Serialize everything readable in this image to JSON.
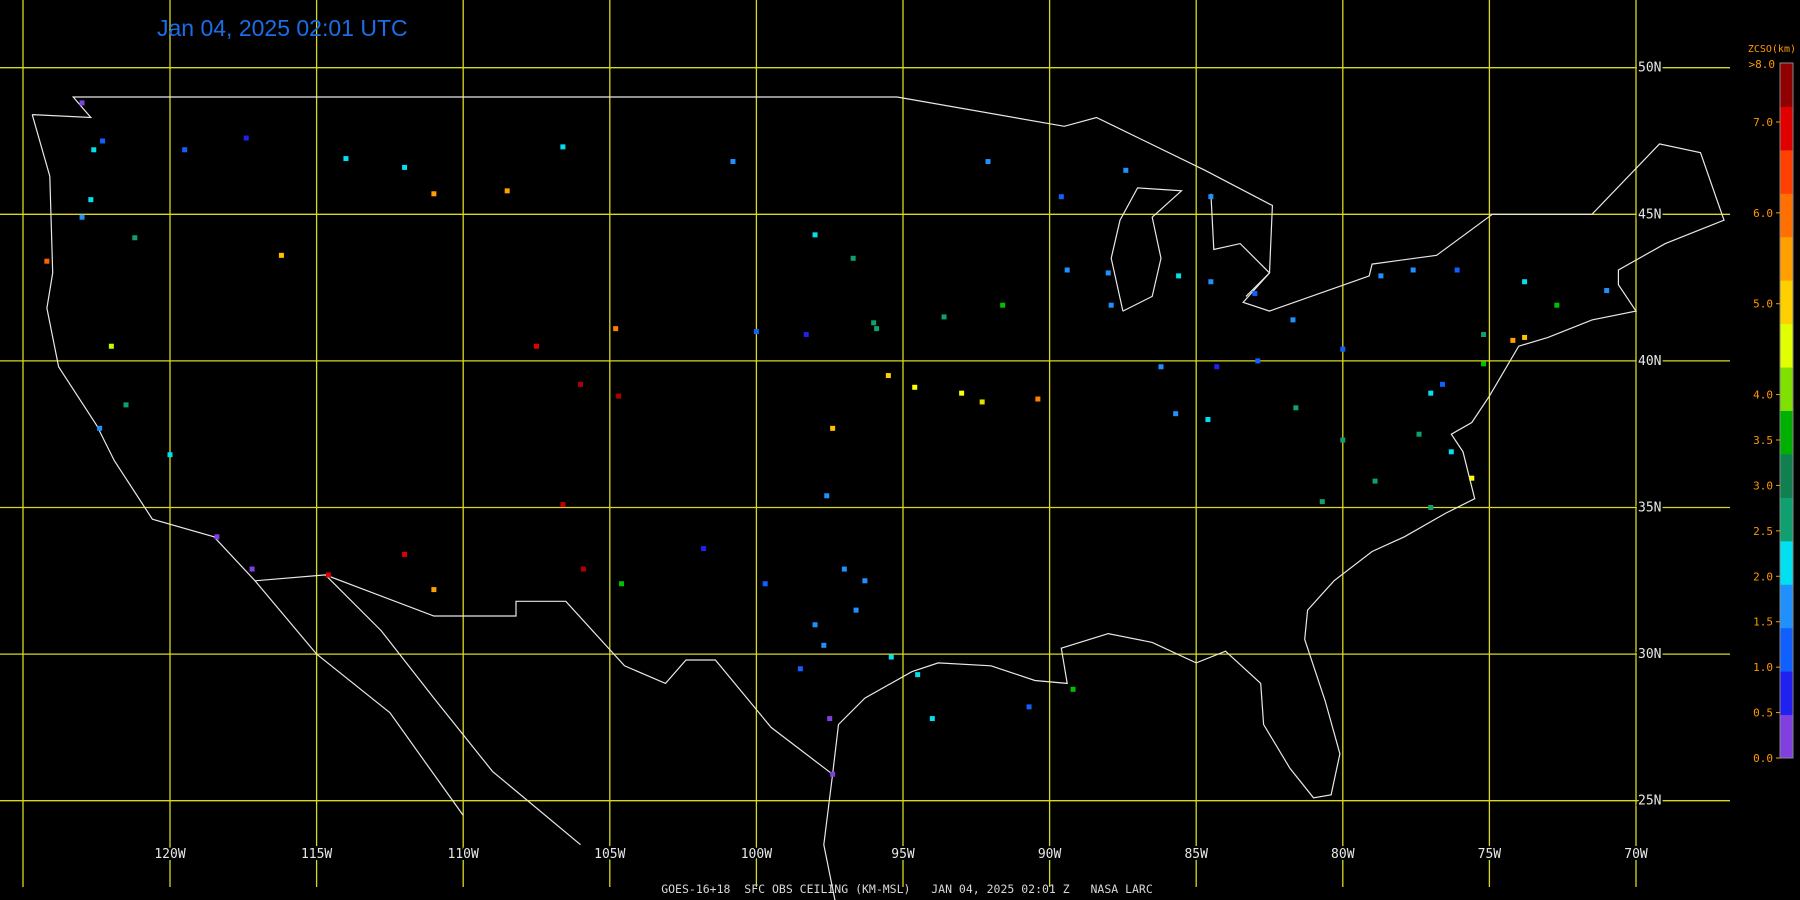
{
  "title": "Jan 04, 2025 02:01 UTC",
  "footer": "GOES-16+18  SFC OBS CEILING (KM-MSL)   JAN 04, 2025 02:01 Z   NASA LARC",
  "grid": {
    "lat": [
      {
        "value": 50,
        "label": "50N"
      },
      {
        "value": 45,
        "label": "45N"
      },
      {
        "value": 40,
        "label": "40N"
      },
      {
        "value": 35,
        "label": "35N"
      },
      {
        "value": 30,
        "label": "30N"
      },
      {
        "value": 25,
        "label": "25N"
      }
    ],
    "lon": [
      {
        "value": -120,
        "label": "120W"
      },
      {
        "value": -115,
        "label": "115W"
      },
      {
        "value": -110,
        "label": "110W"
      },
      {
        "value": -105,
        "label": "105W"
      },
      {
        "value": -100,
        "label": "100W"
      },
      {
        "value": -95,
        "label": "95W"
      },
      {
        "value": -90,
        "label": "90W"
      },
      {
        "value": -85,
        "label": "85W"
      },
      {
        "value": -80,
        "label": "80W"
      },
      {
        "value": -75,
        "label": "75W"
      },
      {
        "value": -70,
        "label": "70W"
      }
    ]
  },
  "legend": {
    "title": "ZCSO(km)",
    "top_label": ">8.0",
    "ticks": [
      {
        "value": 0,
        "label": "0.0"
      },
      {
        "value": 0.5,
        "label": "0.5"
      },
      {
        "value": 1,
        "label": "1.0"
      },
      {
        "value": 1.5,
        "label": "1.5"
      },
      {
        "value": 2,
        "label": "2.0"
      },
      {
        "value": 2.5,
        "label": "2.5"
      },
      {
        "value": 3,
        "label": "3.0"
      },
      {
        "value": 3.5,
        "label": "3.5"
      },
      {
        "value": 4,
        "label": "4.0"
      },
      {
        "value": 5,
        "label": "5.0"
      },
      {
        "value": 6,
        "label": "6.0"
      },
      {
        "value": 7,
        "label": "7.0"
      }
    ],
    "colors": [
      "#8040e0",
      "#2020f0",
      "#1060ff",
      "#2090ff",
      "#00e0f0",
      "#10a070",
      "#108050",
      "#00b000",
      "#80e000",
      "#e0ff00",
      "#ffd000",
      "#ffa000",
      "#ff7000",
      "#ff4000",
      "#e00000",
      "#900000"
    ]
  },
  "stations": [
    {
      "lon": -122.3,
      "lat": 47.5,
      "color": "#1060ff"
    },
    {
      "lon": -122.6,
      "lat": 47.2,
      "color": "#00e0f0"
    },
    {
      "lon": -123,
      "lat": 48.8,
      "color": "#8040e0"
    },
    {
      "lon": -117.4,
      "lat": 47.6,
      "color": "#2020f0"
    },
    {
      "lon": -119.5,
      "lat": 47.2,
      "color": "#1060ff"
    },
    {
      "lon": -123,
      "lat": 44.9,
      "color": "#2090ff"
    },
    {
      "lon": -122.7,
      "lat": 45.5,
      "color": "#00e0f0"
    },
    {
      "lon": -121.2,
      "lat": 44.2,
      "color": "#10a070"
    },
    {
      "lon": -124.2,
      "lat": 43.4,
      "color": "#ff6000"
    },
    {
      "lon": -122.4,
      "lat": 37.7,
      "color": "#2090ff"
    },
    {
      "lon": -121.5,
      "lat": 38.5,
      "color": "#10a070"
    },
    {
      "lon": -120,
      "lat": 36.8,
      "color": "#00e0f0"
    },
    {
      "lon": -118.4,
      "lat": 34,
      "color": "#8040e0"
    },
    {
      "lon": -117.2,
      "lat": 32.9,
      "color": "#8040e0"
    },
    {
      "lon": -122,
      "lat": 40.5,
      "color": "#c0ff00"
    },
    {
      "lon": -116.2,
      "lat": 43.6,
      "color": "#ffc000"
    },
    {
      "lon": -112,
      "lat": 46.6,
      "color": "#00e0f0"
    },
    {
      "lon": -108.5,
      "lat": 45.8,
      "color": "#ffa000"
    },
    {
      "lon": -111,
      "lat": 45.7,
      "color": "#ffa000"
    },
    {
      "lon": -114,
      "lat": 46.9,
      "color": "#00e0f0"
    },
    {
      "lon": -106.6,
      "lat": 47.3,
      "color": "#00e0f0"
    },
    {
      "lon": -104.8,
      "lat": 41.1,
      "color": "#ff8000"
    },
    {
      "lon": -106,
      "lat": 39.2,
      "color": "#b00000"
    },
    {
      "lon": -104.7,
      "lat": 38.8,
      "color": "#b00000"
    },
    {
      "lon": -107.5,
      "lat": 40.5,
      "color": "#e00000"
    },
    {
      "lon": -100.8,
      "lat": 46.8,
      "color": "#2090ff"
    },
    {
      "lon": -98,
      "lat": 44.3,
      "color": "#00e0f0"
    },
    {
      "lon": -96.7,
      "lat": 43.5,
      "color": "#10a070"
    },
    {
      "lon": -96,
      "lat": 41.3,
      "color": "#10a070"
    },
    {
      "lon": -98.3,
      "lat": 40.9,
      "color": "#2020f0"
    },
    {
      "lon": -100,
      "lat": 41,
      "color": "#1060ff"
    },
    {
      "lon": -94.6,
      "lat": 39.1,
      "color": "#ffff00"
    },
    {
      "lon": -93,
      "lat": 38.9,
      "color": "#ffff00"
    },
    {
      "lon": -92.3,
      "lat": 38.6,
      "color": "#e0e000"
    },
    {
      "lon": -90.4,
      "lat": 38.7,
      "color": "#ff8000"
    },
    {
      "lon": -95.5,
      "lat": 39.5,
      "color": "#ffd000"
    },
    {
      "lon": -97.4,
      "lat": 37.7,
      "color": "#ffc000"
    },
    {
      "lon": -93.6,
      "lat": 41.5,
      "color": "#10a070"
    },
    {
      "lon": -91.6,
      "lat": 41.9,
      "color": "#00c000"
    },
    {
      "lon": -95.9,
      "lat": 41.1,
      "color": "#10a070"
    },
    {
      "lon": -97.6,
      "lat": 35.4,
      "color": "#2090ff"
    },
    {
      "lon": -97,
      "lat": 32.9,
      "color": "#2090ff"
    },
    {
      "lon": -97.7,
      "lat": 30.3,
      "color": "#2090ff"
    },
    {
      "lon": -96.6,
      "lat": 31.5,
      "color": "#2090ff"
    },
    {
      "lon": -95.4,
      "lat": 29.9,
      "color": "#00e0f0"
    },
    {
      "lon": -98.5,
      "lat": 29.5,
      "color": "#1060ff"
    },
    {
      "lon": -97.5,
      "lat": 27.8,
      "color": "#8040e0"
    },
    {
      "lon": -97.4,
      "lat": 25.9,
      "color": "#8040e0"
    },
    {
      "lon": -101.8,
      "lat": 33.6,
      "color": "#2020f0"
    },
    {
      "lon": -99.7,
      "lat": 32.4,
      "color": "#1060ff"
    },
    {
      "lon": -94.5,
      "lat": 29.3,
      "color": "#00e0f0"
    },
    {
      "lon": -98,
      "lat": 31,
      "color": "#2090ff"
    },
    {
      "lon": -96.3,
      "lat": 32.5,
      "color": "#2090ff"
    },
    {
      "lon": -87.9,
      "lat": 41.9,
      "color": "#2090ff"
    },
    {
      "lon": -86.2,
      "lat": 39.8,
      "color": "#2090ff"
    },
    {
      "lon": -84.5,
      "lat": 42.7,
      "color": "#2090ff"
    },
    {
      "lon": -83,
      "lat": 42.3,
      "color": "#1060ff"
    },
    {
      "lon": -85.6,
      "lat": 42.9,
      "color": "#00e0f0"
    },
    {
      "lon": -88,
      "lat": 43,
      "color": "#2090ff"
    },
    {
      "lon": -89.4,
      "lat": 43.1,
      "color": "#2090ff"
    },
    {
      "lon": -84.3,
      "lat": 39.8,
      "color": "#2020f0"
    },
    {
      "lon": -82.9,
      "lat": 40,
      "color": "#1060ff"
    },
    {
      "lon": -81.7,
      "lat": 41.4,
      "color": "#2090ff"
    },
    {
      "lon": -80,
      "lat": 40.4,
      "color": "#1060ff"
    },
    {
      "lon": -78.7,
      "lat": 42.9,
      "color": "#2090ff"
    },
    {
      "lon": -77.6,
      "lat": 43.1,
      "color": "#2090ff"
    },
    {
      "lon": -76.1,
      "lat": 43.1,
      "color": "#1060ff"
    },
    {
      "lon": -73.8,
      "lat": 42.7,
      "color": "#00e0f0"
    },
    {
      "lon": -75.2,
      "lat": 40.9,
      "color": "#10a070"
    },
    {
      "lon": -74.2,
      "lat": 40.7,
      "color": "#ffa000"
    },
    {
      "lon": -73.8,
      "lat": 40.8,
      "color": "#ffc000"
    },
    {
      "lon": -71,
      "lat": 42.4,
      "color": "#2090ff"
    },
    {
      "lon": -72.7,
      "lat": 41.9,
      "color": "#00c000"
    },
    {
      "lon": -85.7,
      "lat": 38.2,
      "color": "#2090ff"
    },
    {
      "lon": -84.6,
      "lat": 38,
      "color": "#00e0f0"
    },
    {
      "lon": -81.6,
      "lat": 38.4,
      "color": "#10a070"
    },
    {
      "lon": -80,
      "lat": 37.3,
      "color": "#10a070"
    },
    {
      "lon": -77.4,
      "lat": 37.5,
      "color": "#10a070"
    },
    {
      "lon": -76.3,
      "lat": 36.9,
      "color": "#00e0f0"
    },
    {
      "lon": -77,
      "lat": 38.9,
      "color": "#00e0f0"
    },
    {
      "lon": -76.6,
      "lat": 39.2,
      "color": "#1060ff"
    },
    {
      "lon": -75.2,
      "lat": 39.9,
      "color": "#00c000"
    },
    {
      "lon": -78.9,
      "lat": 35.9,
      "color": "#10a070"
    },
    {
      "lon": -77,
      "lat": 35,
      "color": "#10a070"
    },
    {
      "lon": -75.6,
      "lat": 36,
      "color": "#ffff00"
    },
    {
      "lon": -80.7,
      "lat": 35.2,
      "color": "#10a070"
    },
    {
      "lon": -92.1,
      "lat": 46.8,
      "color": "#2090ff"
    },
    {
      "lon": -89.6,
      "lat": 45.6,
      "color": "#1060ff"
    },
    {
      "lon": -84.5,
      "lat": 45.6,
      "color": "#2090ff"
    },
    {
      "lon": -87.4,
      "lat": 46.5,
      "color": "#2090ff"
    },
    {
      "lon": -112,
      "lat": 33.4,
      "color": "#e00000"
    },
    {
      "lon": -111,
      "lat": 32.2,
      "color": "#ffa000"
    },
    {
      "lon": -106.6,
      "lat": 35.1,
      "color": "#c00000"
    },
    {
      "lon": -105.9,
      "lat": 32.9,
      "color": "#b00000"
    },
    {
      "lon": -114.6,
      "lat": 32.7,
      "color": "#e00000"
    },
    {
      "lon": -104.6,
      "lat": 32.4,
      "color": "#00c000"
    },
    {
      "lon": -90.7,
      "lat": 28.2,
      "color": "#1060ff"
    },
    {
      "lon": -89.2,
      "lat": 28.8,
      "color": "#00c000"
    },
    {
      "lon": -94,
      "lat": 27.8,
      "color": "#00e0f0"
    }
  ]
}
